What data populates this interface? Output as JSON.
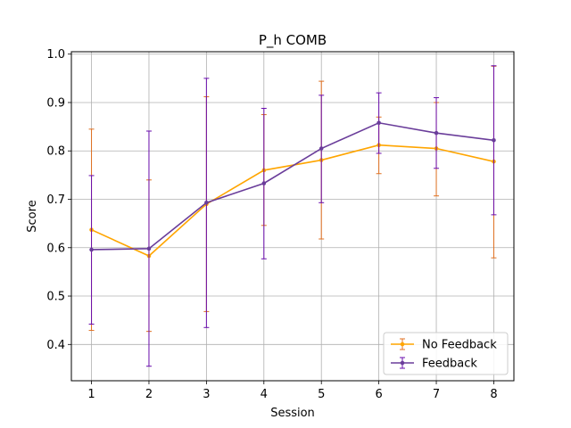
{
  "chart_data": {
    "type": "line",
    "title": "P_h COMB",
    "xlabel": "Session",
    "ylabel": "Score",
    "x": [
      1,
      2,
      3,
      4,
      5,
      6,
      7,
      8
    ],
    "xlim": [
      0.65,
      8.35
    ],
    "ylim": [
      0.325,
      1.005
    ],
    "yticks": [
      0.4,
      0.5,
      0.6,
      0.7,
      0.8,
      0.9,
      1.0
    ],
    "grid": true,
    "legend_position": "lower-right",
    "series": [
      {
        "name": "No Feedback",
        "line_color": "#ffa500",
        "error_color": "#e07020",
        "values": [
          0.637,
          0.583,
          0.69,
          0.76,
          0.781,
          0.812,
          0.805,
          0.778
        ],
        "err_low": [
          0.429,
          0.427,
          0.468,
          0.646,
          0.618,
          0.753,
          0.707,
          0.579
        ],
        "err_high": [
          0.845,
          0.74,
          0.912,
          0.875,
          0.944,
          0.87,
          0.9,
          0.975
        ]
      },
      {
        "name": "Feedback",
        "line_color": "#6a3d9a",
        "error_color": "#6a0dad",
        "values": [
          0.596,
          0.598,
          0.693,
          0.733,
          0.805,
          0.858,
          0.837,
          0.822
        ],
        "err_low": [
          0.442,
          0.355,
          0.435,
          0.577,
          0.693,
          0.795,
          0.764,
          0.668
        ],
        "err_high": [
          0.749,
          0.841,
          0.95,
          0.888,
          0.915,
          0.92,
          0.91,
          0.976
        ]
      }
    ]
  }
}
